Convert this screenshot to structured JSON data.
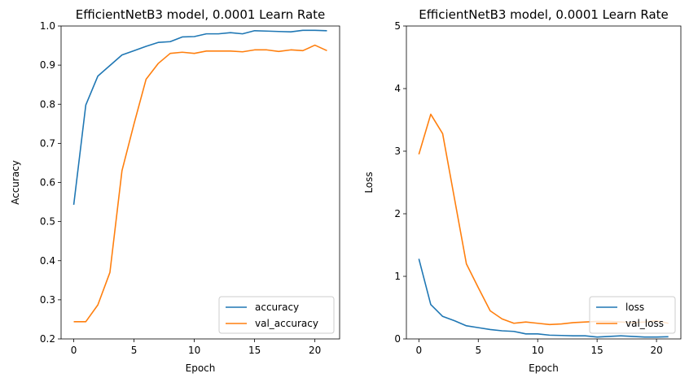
{
  "chart_data": [
    {
      "type": "line",
      "title": "EfficientNetB3 model, 0.0001 Learn Rate",
      "xlabel": "Epoch",
      "ylabel": "Accuracy",
      "xlim": [
        -1.05,
        22.05
      ],
      "ylim": [
        0.2,
        1.0
      ],
      "xticks": [
        0,
        5,
        10,
        15,
        20
      ],
      "yticks": [
        0.2,
        0.3,
        0.4,
        0.5,
        0.6,
        0.7,
        0.8,
        0.9,
        1.0
      ],
      "ytick_labels": [
        "0.2",
        "0.3",
        "0.4",
        "0.5",
        "0.6",
        "0.7",
        "0.8",
        "0.9",
        "1.0"
      ],
      "legend_position": "lower right",
      "x": [
        0,
        1,
        2,
        3,
        4,
        5,
        6,
        7,
        8,
        9,
        10,
        11,
        12,
        13,
        14,
        15,
        16,
        17,
        18,
        19,
        20,
        21
      ],
      "series": [
        {
          "name": "accuracy",
          "color": "#1f77b4",
          "values": [
            0.543,
            0.798,
            0.872,
            0.899,
            0.926,
            0.937,
            0.948,
            0.958,
            0.96,
            0.972,
            0.973,
            0.98,
            0.98,
            0.983,
            0.98,
            0.988,
            0.987,
            0.986,
            0.985,
            0.989,
            0.989,
            0.988
          ]
        },
        {
          "name": "val_accuracy",
          "color": "#ff7f0e",
          "values": [
            0.244,
            0.244,
            0.287,
            0.37,
            0.63,
            0.75,
            0.864,
            0.904,
            0.93,
            0.933,
            0.93,
            0.936,
            0.936,
            0.936,
            0.934,
            0.939,
            0.939,
            0.935,
            0.939,
            0.937,
            0.951,
            0.937
          ]
        }
      ]
    },
    {
      "type": "line",
      "title": "EfficientNetB3 model, 0.0001 Learn Rate",
      "xlabel": "Epoch",
      "ylabel": "Loss",
      "xlim": [
        -1.05,
        22.05
      ],
      "ylim": [
        0,
        5
      ],
      "xticks": [
        0,
        5,
        10,
        15,
        20
      ],
      "yticks": [
        0,
        1,
        2,
        3,
        4,
        5
      ],
      "ytick_labels": [
        "0",
        "1",
        "2",
        "3",
        "4",
        "5"
      ],
      "legend_position": "lower right",
      "x": [
        0,
        1,
        2,
        3,
        4,
        5,
        6,
        7,
        8,
        9,
        10,
        11,
        12,
        13,
        14,
        15,
        16,
        17,
        18,
        19,
        20,
        21
      ],
      "series": [
        {
          "name": "loss",
          "color": "#1f77b4",
          "values": [
            1.28,
            0.55,
            0.36,
            0.29,
            0.21,
            0.18,
            0.15,
            0.13,
            0.12,
            0.08,
            0.08,
            0.06,
            0.055,
            0.05,
            0.05,
            0.03,
            0.04,
            0.05,
            0.04,
            0.03,
            0.03,
            0.035
          ]
        },
        {
          "name": "val_loss",
          "color": "#ff7f0e",
          "values": [
            2.95,
            3.59,
            3.28,
            2.24,
            1.2,
            0.82,
            0.45,
            0.32,
            0.25,
            0.27,
            0.25,
            0.23,
            0.24,
            0.26,
            0.27,
            0.28,
            0.28,
            0.27,
            0.26,
            0.27,
            0.29,
            0.25
          ]
        }
      ]
    }
  ]
}
